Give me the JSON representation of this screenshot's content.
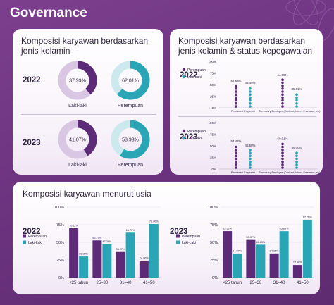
{
  "page_title": "Governance",
  "colors": {
    "purple": "#5d2a78",
    "teal": "#2aa5b6",
    "purple_light": "#d9c6e3",
    "teal_light": "#cce9ee"
  },
  "gender_card": {
    "title": "Komposisi karyawan berdasarkan jenis kelamin",
    "years": [
      "2022",
      "2023"
    ],
    "labels": {
      "male": "Laki-laki",
      "female": "Perempuan"
    }
  },
  "status_card": {
    "title": "Komposisi karyawan berdasarkan jenis kelamin & status kepegawaian",
    "years": [
      "2022",
      "2023"
    ],
    "legend": [
      "Perempuan",
      "Laki-Laki"
    ]
  },
  "age_card": {
    "title": "Komposisi karyawan menurut usia",
    "years": [
      "2022",
      "2023"
    ],
    "legend": [
      "Perempuan",
      "Laki-Laki"
    ]
  },
  "chart_data": [
    {
      "type": "pie",
      "title": "2022",
      "categories": [
        "Laki-laki"
      ],
      "values": [
        37.99
      ],
      "value_labels": [
        "37.99%"
      ],
      "color": "#5d2a78"
    },
    {
      "type": "pie",
      "title": "2022",
      "categories": [
        "Perempuan"
      ],
      "values": [
        62.01
      ],
      "value_labels": [
        "62.01%"
      ],
      "color": "#2aa5b6"
    },
    {
      "type": "pie",
      "title": "2023",
      "categories": [
        "Laki-laki"
      ],
      "values": [
        41.07
      ],
      "value_labels": [
        "41.07%"
      ],
      "color": "#5d2a78"
    },
    {
      "type": "pie",
      "title": "2023",
      "categories": [
        "Perempuan"
      ],
      "values": [
        58.93
      ],
      "value_labels": [
        "58.93%"
      ],
      "color": "#2aa5b6"
    },
    {
      "type": "bar",
      "title": "2022",
      "categories": [
        "Permanent Employee",
        "Temporary Employee (Contract, Intern, Freelance, etc)"
      ],
      "series": [
        {
          "name": "Perempuan",
          "values": [
            51.55,
            64.99
          ],
          "value_labels": [
            "51.55%",
            "64.99%"
          ]
        },
        {
          "name": "Laki-Laki",
          "values": [
            48.45,
            35.01
          ],
          "value_labels": [
            "48.45%",
            "35.01%"
          ]
        }
      ],
      "yticks": [
        "100%",
        "75%",
        "50%",
        "25%",
        "0%"
      ],
      "ylim": [
        0,
        100
      ]
    },
    {
      "type": "bar",
      "title": "2023",
      "categories": [
        "Permanent Employee",
        "Temporary Employee (Contract, Intern, Freelance, etc)"
      ],
      "series": [
        {
          "name": "Perempuan",
          "values": [
            54.42,
            60.01
          ],
          "value_labels": [
            "54.42%",
            "60.01%"
          ]
        },
        {
          "name": "Laki-Laki",
          "values": [
            45.58,
            39.99
          ],
          "value_labels": [
            "45.58%",
            "39.99%"
          ]
        }
      ],
      "yticks": [
        "100%",
        "75%",
        "50%",
        "25%",
        "0%"
      ],
      "ylim": [
        0,
        100
      ]
    },
    {
      "type": "bar",
      "title": "2022",
      "categories": [
        "<25 tahun",
        "25–30",
        "31–40",
        "41–50"
      ],
      "series": [
        {
          "name": "Perempuan",
          "values": [
            70.12,
            52.73,
            36.27,
            24.0
          ],
          "value_labels": [
            "70.12%",
            "52.73%",
            "36.27%",
            "24.00%"
          ]
        },
        {
          "name": "Laki-Laki",
          "values": [
            29.88,
            47.26,
            63.73,
            76.0
          ],
          "value_labels": [
            "29.88%",
            "47.26%",
            "63.73%",
            "76.00%"
          ]
        }
      ],
      "yticks": [
        "100%",
        "75%",
        "50%",
        "25%",
        "0%"
      ],
      "ylim": [
        0,
        100
      ]
    },
    {
      "type": "bar",
      "title": "2023",
      "categories": [
        "<25 tahun",
        "25–30",
        "31–40",
        "41–50"
      ],
      "series": [
        {
          "name": "Perempuan",
          "values": [
            65.93,
            53.37,
            34.15,
            17.9
          ],
          "value_labels": [
            "65.93%",
            "53.37%",
            "34.15%",
            "17.90%"
          ]
        },
        {
          "name": "Laki-Laki",
          "values": [
            34.07,
            46.63,
            65.85,
            82.09
          ],
          "value_labels": [
            "34.07%",
            "46.63%",
            "65.85%",
            "82.09%"
          ]
        }
      ],
      "yticks": [
        "100%",
        "75%",
        "50%",
        "25%",
        "0%"
      ],
      "ylim": [
        0,
        100
      ]
    }
  ]
}
